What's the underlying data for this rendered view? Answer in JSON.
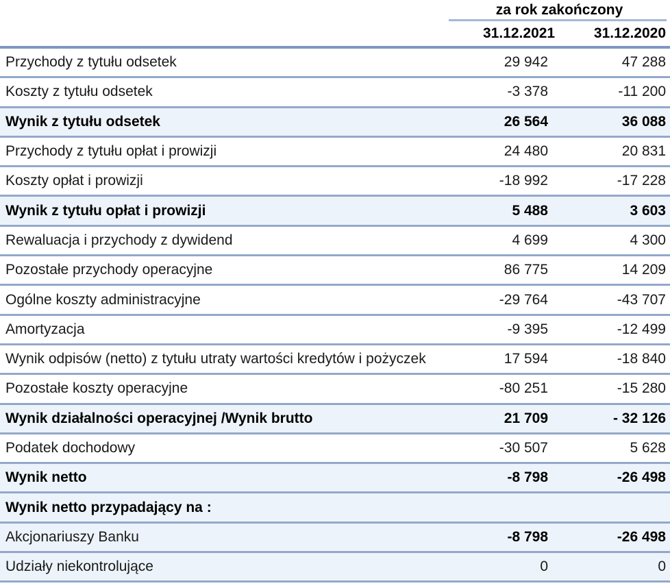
{
  "table": {
    "group_header": "za rok zakończony",
    "columns": {
      "c2021": "31.12.2021",
      "c2020": "31.12.2020"
    },
    "rows": [
      {
        "label": "Przychody z tytułu odsetek",
        "v2021": "29 942",
        "v2020": "47 288",
        "style": "normal"
      },
      {
        "label": "Koszty z tytułu odsetek",
        "v2021": "-3 378",
        "v2020": "-11 200",
        "style": "normal"
      },
      {
        "label": "Wynik z tytułu odsetek",
        "v2021": "26 564",
        "v2020": "36 088",
        "style": "subtotal"
      },
      {
        "label": "Przychody z tytułu opłat i prowizji",
        "v2021": "24 480",
        "v2020": "20 831",
        "style": "normal"
      },
      {
        "label": "Koszty opłat i prowizji",
        "v2021": "-18 992",
        "v2020": "-17 228",
        "style": "normal"
      },
      {
        "label": "Wynik z tytułu opłat i prowizji",
        "v2021": "5 488",
        "v2020": "3 603",
        "style": "subtotal"
      },
      {
        "label": "Rewaluacja i przychody z dywidend",
        "v2021": "4 699",
        "v2020": "4 300",
        "style": "normal"
      },
      {
        "label": "Pozostałe przychody operacyjne",
        "v2021": "86 775",
        "v2020": "14 209",
        "style": "normal"
      },
      {
        "label": "Ogólne koszty administracyjne",
        "v2021": "-29 764",
        "v2020": "-43 707",
        "style": "normal"
      },
      {
        "label": "Amortyzacja",
        "v2021": "-9 395",
        "v2020": "-12 499",
        "style": "normal"
      },
      {
        "label": "Wynik odpisów (netto) z tytułu utraty wartości kredytów i pożyczek",
        "v2021": "17 594",
        "v2020": "-18 840",
        "style": "normal"
      },
      {
        "label": "Pozostałe koszty operacyjne",
        "v2021": "-80 251",
        "v2020": "-15 280",
        "style": "normal"
      },
      {
        "label": "Wynik działalności operacyjnej /Wynik brutto",
        "v2021": "21 709",
        "v2020": "- 32 126",
        "style": "subtotal"
      },
      {
        "label": "Podatek dochodowy",
        "v2021": "-30 507",
        "v2020": "5 628",
        "style": "normal"
      },
      {
        "label": "Wynik netto",
        "v2021": "-8 798",
        "v2020": "-26 498",
        "style": "subtotal"
      },
      {
        "label": "Wynik netto przypadający na :",
        "v2021": "",
        "v2020": "",
        "style": "section-header"
      },
      {
        "label": "Akcjonariuszy Banku",
        "v2021": "-8 798",
        "v2020": "-26 498",
        "style": "highlight-values-bold"
      },
      {
        "label": "Udziały niekontrolujące",
        "v2021": "0",
        "v2020": "0",
        "style": "highlight"
      }
    ]
  },
  "colors": {
    "row_separator": "#93a8ca",
    "thick_rule": "#7e96c1",
    "group_underline": "#a3b7d7",
    "highlight_row_bg": "#edf3fa",
    "text": "#1a1a1a"
  }
}
